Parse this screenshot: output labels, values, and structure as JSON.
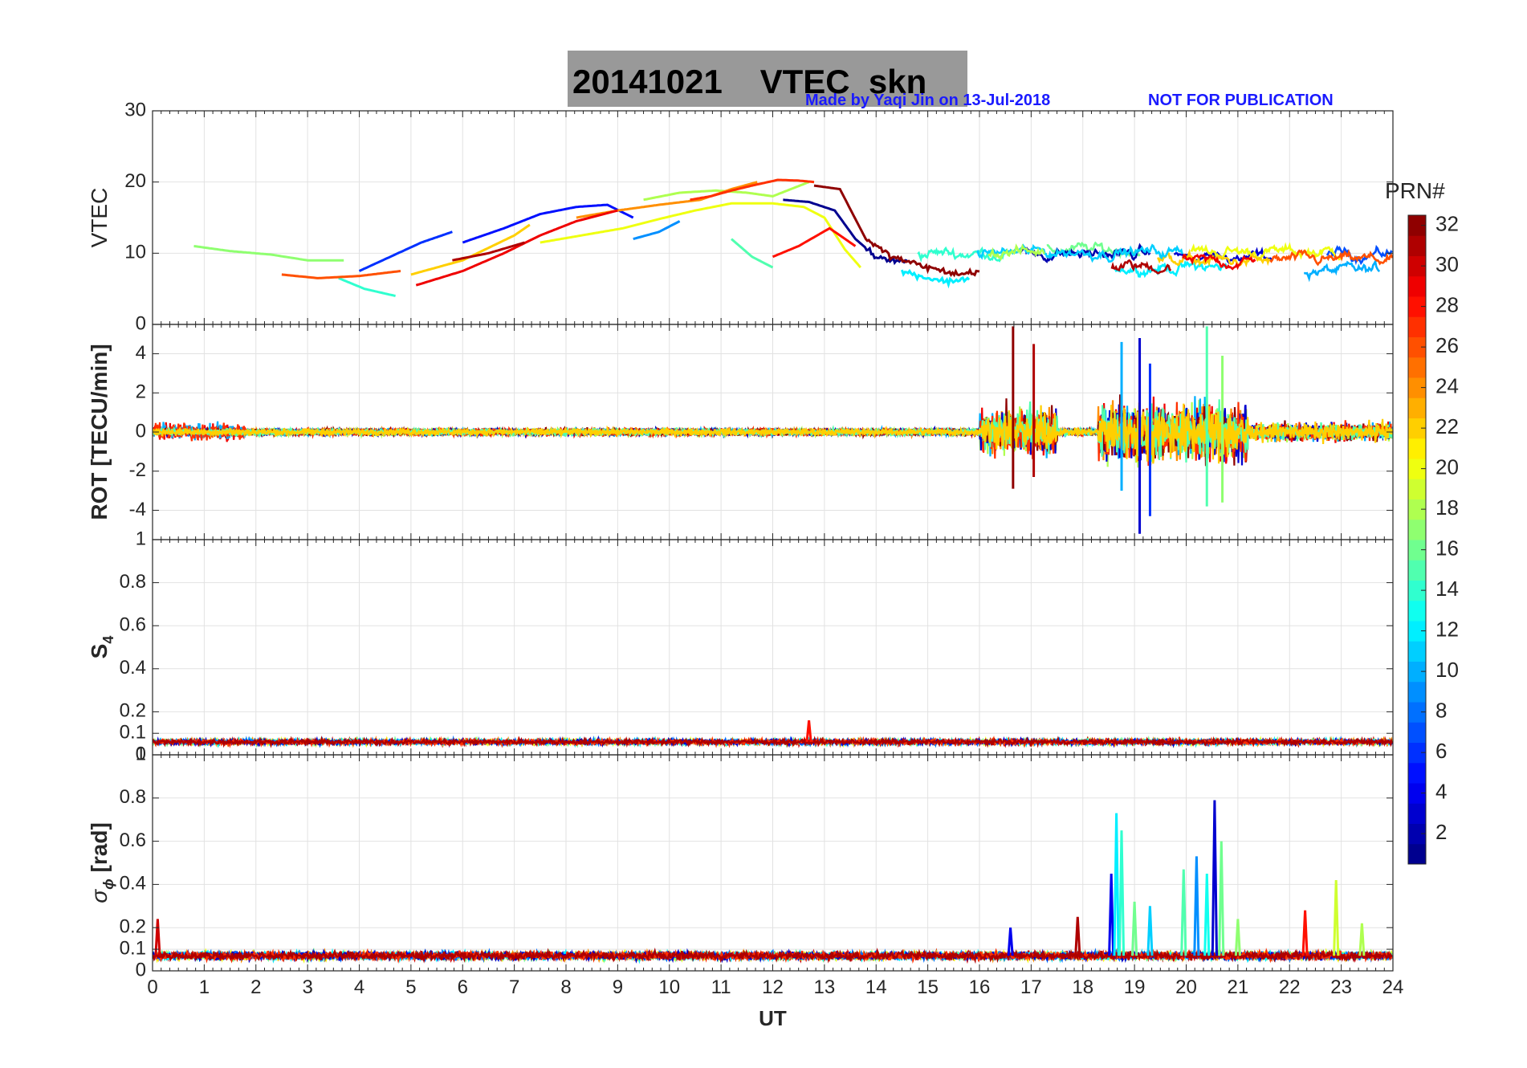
{
  "figure": {
    "title_left": "20141021",
    "title_right": "VTEC  skn",
    "credit": "Made by Yaqi Jin on 13-Jul-2018",
    "notice": "NOT FOR PUBLICATION",
    "title_box_color": "#999999",
    "credit_color": "#1a1aff"
  },
  "chart_data": [
    {
      "type": "line",
      "panel": "vtec",
      "ylabel": "VTEC",
      "ylim": [
        0,
        30
      ],
      "yticks": [
        "0",
        "10",
        "20",
        "30"
      ],
      "yticks_values": [
        0,
        10,
        20,
        30
      ],
      "xlim": [
        0,
        24
      ],
      "grid": true,
      "series": [
        {
          "prn": 1,
          "x": [
            12.2,
            12.7,
            13.2,
            13.6,
            14.0,
            14.6
          ],
          "y": [
            17.5,
            17.2,
            16.0,
            12.0,
            9.5,
            8.8
          ]
        },
        {
          "prn": 5,
          "x": [
            6.0,
            6.8,
            7.5,
            8.2,
            8.8,
            9.3
          ],
          "y": [
            11.5,
            13.5,
            15.5,
            16.5,
            16.8,
            15.0
          ]
        },
        {
          "prn": 6,
          "x": [
            4.0,
            4.6,
            5.2,
            5.8
          ],
          "y": [
            7.5,
            9.5,
            11.5,
            13.0
          ]
        },
        {
          "prn": 9,
          "x": [
            9.3,
            9.8,
            10.2
          ],
          "y": [
            12.0,
            13.0,
            14.5
          ]
        },
        {
          "prn": 12,
          "x": [
            14.5,
            15.0,
            15.4,
            15.8
          ],
          "y": [
            7.5,
            6.5,
            6.0,
            6.5
          ]
        },
        {
          "prn": 14,
          "x": [
            3.6,
            4.1,
            4.7
          ],
          "y": [
            6.5,
            5.0,
            4.0
          ]
        },
        {
          "prn": 15,
          "x": [
            11.2,
            11.6,
            12.0
          ],
          "y": [
            12.0,
            9.5,
            8.0
          ]
        },
        {
          "prn": 17,
          "x": [
            0.8,
            1.5,
            2.3,
            3.0,
            3.7
          ],
          "y": [
            11.0,
            10.3,
            9.8,
            9.0,
            9.0
          ]
        },
        {
          "prn": 18,
          "x": [
            9.5,
            10.2,
            10.9,
            11.5,
            12.0,
            12.7
          ],
          "y": [
            17.5,
            18.5,
            18.8,
            18.5,
            18.0,
            20.0
          ]
        },
        {
          "prn": 20,
          "x": [
            7.5,
            8.3,
            9.1,
            9.8,
            10.5,
            11.2,
            12.0,
            12.6,
            13.0,
            13.4,
            13.7
          ],
          "y": [
            11.5,
            12.5,
            13.5,
            14.8,
            16.0,
            17.0,
            17.0,
            16.5,
            15.0,
            10.5,
            8.0
          ]
        },
        {
          "prn": 22,
          "x": [
            5.0,
            6.0,
            7.0,
            7.3
          ],
          "y": [
            7.0,
            9.0,
            12.5,
            14.0
          ]
        },
        {
          "prn": 24,
          "x": [
            8.2,
            9.0,
            9.8,
            10.6,
            11.2,
            11.7
          ],
          "y": [
            15.0,
            16.0,
            16.8,
            17.5,
            19.0,
            20.0
          ]
        },
        {
          "prn": 26,
          "x": [
            2.5,
            3.2,
            4.0,
            4.8
          ],
          "y": [
            7.0,
            6.5,
            6.8,
            7.5
          ]
        },
        {
          "prn": 27,
          "x": [
            10.4,
            10.8,
            11.2,
            11.6,
            12.1,
            12.5,
            12.8
          ],
          "y": [
            17.5,
            18.0,
            18.8,
            19.5,
            20.3,
            20.2,
            20.0
          ]
        },
        {
          "prn": 28,
          "x": [
            12.0,
            12.5,
            13.1,
            13.6
          ],
          "y": [
            9.5,
            11.0,
            13.5,
            11.0
          ]
        },
        {
          "prn": 29,
          "x": [
            5.1,
            6.0,
            6.8,
            7.5,
            8.2,
            9.0
          ],
          "y": [
            5.5,
            7.5,
            10.0,
            12.5,
            14.5,
            16.0
          ]
        },
        {
          "prn": 31,
          "x": [
            5.8,
            6.5,
            7.2
          ],
          "y": [
            9.0,
            10.0,
            11.5
          ]
        },
        {
          "prn": 32,
          "x": [
            12.8,
            13.3,
            13.8,
            14.3,
            15.0,
            15.6,
            16.0
          ],
          "y": [
            19.5,
            19.0,
            12.0,
            9.5,
            8.0,
            7.0,
            7.5
          ]
        }
      ],
      "noisy_band": {
        "start": 14.0,
        "end": 24.0,
        "center": 9.0,
        "spread": 3.0
      }
    },
    {
      "type": "line",
      "panel": "rot",
      "ylabel": "ROT [TECU/min]",
      "ylim": [
        -5.5,
        5.5
      ],
      "yticks": [
        "-4",
        "-2",
        "0",
        "2",
        "4"
      ],
      "yticks_values": [
        -4,
        -2,
        0,
        2,
        4
      ],
      "xlim": [
        0,
        24
      ],
      "grid": true,
      "baseline_noise": 0.25,
      "disturbed_intervals": [
        {
          "start": 16.0,
          "end": 17.5,
          "amplitude": 2.0
        },
        {
          "start": 18.3,
          "end": 21.2,
          "amplitude": 2.5
        },
        {
          "start": 21.2,
          "end": 24.0,
          "amplitude": 0.8
        }
      ],
      "spikes": [
        {
          "x": 16.65,
          "top": 5.4,
          "bottom": -2.9,
          "prn": 32
        },
        {
          "x": 17.05,
          "top": 4.5,
          "bottom": -2.3,
          "prn": 31
        },
        {
          "x": 18.75,
          "top": 4.6,
          "bottom": -3.0,
          "prn": 10
        },
        {
          "x": 19.1,
          "top": 4.8,
          "bottom": -5.2,
          "prn": 3
        },
        {
          "x": 19.3,
          "top": 3.5,
          "bottom": -4.3,
          "prn": 6
        },
        {
          "x": 20.4,
          "top": 5.4,
          "bottom": -3.8,
          "prn": 15
        },
        {
          "x": 20.7,
          "top": 3.9,
          "bottom": -3.6,
          "prn": 17
        }
      ]
    },
    {
      "type": "line",
      "panel": "s4",
      "ylabel_main": "S",
      "ylabel_sub": "4",
      "ylim": [
        0,
        1
      ],
      "yticks": [
        "0",
        "0.1",
        "0.2",
        "0.4",
        "0.6",
        "0.8",
        "1"
      ],
      "yticks_values": [
        0,
        0.1,
        0.2,
        0.4,
        0.6,
        0.8,
        1
      ],
      "xlim": [
        0,
        24
      ],
      "grid": true,
      "baseline": 0.06,
      "baseline_noise": 0.015,
      "spikes": [
        {
          "x": 12.7,
          "value": 0.16,
          "prn": 28
        }
      ]
    },
    {
      "type": "line",
      "panel": "sigma_phi",
      "ylabel_main": "σ",
      "ylabel_sub": "ϕ",
      "ylabel_unit": "[rad]",
      "ylim": [
        0,
        1
      ],
      "yticks": [
        "0",
        "0.1",
        "0.2",
        "0.4",
        "0.6",
        "0.8",
        "1"
      ],
      "yticks_values": [
        0,
        0.1,
        0.2,
        0.4,
        0.6,
        0.8,
        1
      ],
      "xlim": [
        0,
        24
      ],
      "xlabel": "UT",
      "xticks": [
        "0",
        "1",
        "2",
        "3",
        "4",
        "5",
        "6",
        "7",
        "8",
        "9",
        "10",
        "11",
        "12",
        "13",
        "14",
        "15",
        "16",
        "17",
        "18",
        "19",
        "20",
        "21",
        "22",
        "23",
        "24"
      ],
      "xticks_values": [
        0,
        1,
        2,
        3,
        4,
        5,
        6,
        7,
        8,
        9,
        10,
        11,
        12,
        13,
        14,
        15,
        16,
        17,
        18,
        19,
        20,
        21,
        22,
        23,
        24
      ],
      "grid": true,
      "baseline": 0.07,
      "baseline_noise": 0.025,
      "spikes": [
        {
          "x": 0.1,
          "value": 0.24,
          "prn": 30
        },
        {
          "x": 16.6,
          "value": 0.2,
          "prn": 4
        },
        {
          "x": 17.9,
          "value": 0.25,
          "prn": 31
        },
        {
          "x": 18.55,
          "value": 0.45,
          "prn": 4
        },
        {
          "x": 18.65,
          "value": 0.73,
          "prn": 12
        },
        {
          "x": 18.75,
          "value": 0.65,
          "prn": 14
        },
        {
          "x": 19.0,
          "value": 0.32,
          "prn": 16
        },
        {
          "x": 19.3,
          "value": 0.3,
          "prn": 11
        },
        {
          "x": 19.95,
          "value": 0.47,
          "prn": 15
        },
        {
          "x": 20.2,
          "value": 0.53,
          "prn": 9
        },
        {
          "x": 20.4,
          "value": 0.45,
          "prn": 13
        },
        {
          "x": 20.55,
          "value": 0.79,
          "prn": 3
        },
        {
          "x": 20.68,
          "value": 0.6,
          "prn": 16
        },
        {
          "x": 21.0,
          "value": 0.24,
          "prn": 17
        },
        {
          "x": 22.3,
          "value": 0.28,
          "prn": 28
        },
        {
          "x": 22.9,
          "value": 0.42,
          "prn": 19
        },
        {
          "x": 23.4,
          "value": 0.22,
          "prn": 18
        }
      ]
    }
  ],
  "colorbar": {
    "label": "PRN#",
    "range": [
      1,
      32
    ],
    "ticks": [
      "2",
      "4",
      "6",
      "8",
      "10",
      "12",
      "14",
      "16",
      "18",
      "20",
      "22",
      "24",
      "26",
      "28",
      "30",
      "32"
    ],
    "ticks_values": [
      2,
      4,
      6,
      8,
      10,
      12,
      14,
      16,
      18,
      20,
      22,
      24,
      26,
      28,
      30,
      32
    ],
    "colormap": "jet"
  }
}
